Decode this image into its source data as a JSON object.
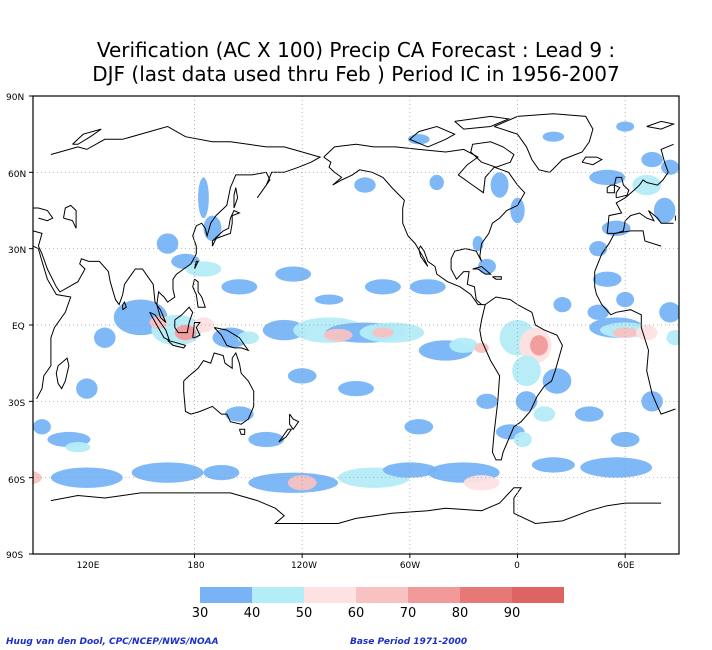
{
  "title": {
    "line1": "Verification (AC X 100) Precip CA Forecast : Lead 9 :",
    "line2": "DJF (last data used thru Feb ) Period IC in 1956-2007"
  },
  "map": {
    "projection": "equirectangular",
    "lon_range": [
      30,
      390
    ],
    "lat_range": [
      -90,
      90
    ],
    "grid": "dotted",
    "lat_labels": [
      "90N",
      "60N",
      "30N",
      "EQ",
      "30S",
      "60S",
      "90S"
    ],
    "lon_labels": [
      "120E",
      "180",
      "120W",
      "60W",
      "0",
      "60E"
    ]
  },
  "legend": {
    "levels": [
      "30",
      "40",
      "50",
      "60",
      "70",
      "80",
      "90"
    ],
    "colors": [
      "#78b4f5",
      "#b4ecf8",
      "#fde2e2",
      "#f8c2c2",
      "#f29a9a",
      "#e67878",
      "#de6464"
    ]
  },
  "credits": {
    "left": "Huug van den Dool, CPC/NCEP/NWS/NOAA",
    "right": "Base Period 1971-2000"
  }
}
